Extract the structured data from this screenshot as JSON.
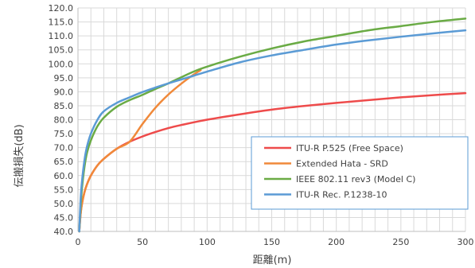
{
  "chart_data": {
    "type": "line",
    "title": "",
    "xlabel": "距離(m)",
    "ylabel": "伝搬損失(dB)",
    "xlim": [
      0,
      300
    ],
    "ylim": [
      40,
      120
    ],
    "x_ticks": [
      "0",
      "50",
      "100",
      "150",
      "200",
      "250",
      "300"
    ],
    "y_ticks": [
      "40.0",
      "45.0",
      "50.0",
      "55.0",
      "60.0",
      "65.0",
      "70.0",
      "75.0",
      "80.0",
      "85.0",
      "90.0",
      "95.0",
      "100.0",
      "105.0",
      "110.0",
      "115.0",
      "120.0"
    ],
    "grid": true,
    "legend_position": "bottom-right",
    "series": [
      {
        "name": "ITU-R P.525 (Free Space)",
        "color": "#ee4b4b",
        "x": [
          1,
          2,
          3,
          5,
          7,
          10,
          15,
          20,
          30,
          40,
          50,
          60,
          70,
          80,
          100,
          125,
          150,
          175,
          200,
          225,
          250,
          275,
          300
        ],
        "y": [
          40.0,
          46.0,
          49.6,
          54.0,
          56.9,
          60.0,
          63.6,
          66.0,
          69.6,
          72.1,
          74.0,
          75.6,
          77.0,
          78.1,
          80.0,
          81.9,
          83.6,
          84.9,
          86.0,
          87.0,
          88.0,
          88.8,
          89.5
        ]
      },
      {
        "name": "Extended Hata - SRD",
        "color": "#f0893a",
        "x": [
          1,
          2,
          3,
          5,
          7,
          10,
          15,
          20,
          30,
          40,
          50,
          60,
          70,
          80,
          90,
          95
        ],
        "y": [
          40.0,
          46.0,
          49.6,
          54.0,
          56.9,
          60.0,
          63.6,
          66.0,
          69.6,
          72.1,
          78.5,
          84.3,
          89.0,
          92.9,
          96.3,
          97.7
        ]
      },
      {
        "name": "IEEE 802.11 rev3 (Model C)",
        "color": "#6aab45",
        "x": [
          1,
          2,
          3,
          5,
          7,
          10,
          15,
          20,
          30,
          40,
          50,
          60,
          70,
          80,
          90,
          100,
          125,
          150,
          175,
          200,
          225,
          250,
          275,
          300
        ],
        "y": [
          40.0,
          48.5,
          55.0,
          63.0,
          68.2,
          72.6,
          77.6,
          80.7,
          84.6,
          87.0,
          88.9,
          91.0,
          93.0,
          95.2,
          97.3,
          99.0,
          102.5,
          105.5,
          108.0,
          110.0,
          112.0,
          113.5,
          115.0,
          116.2
        ]
      },
      {
        "name": "ITU-R Rec. P.1238-10",
        "color": "#5b9bd5",
        "x": [
          1,
          2,
          3,
          5,
          7,
          10,
          15,
          20,
          30,
          40,
          50,
          60,
          70,
          80,
          90,
          100,
          125,
          150,
          175,
          200,
          225,
          250,
          275,
          300
        ],
        "y": [
          40.0,
          51.0,
          57.4,
          65.4,
          70.4,
          75.0,
          79.9,
          83.0,
          86.0,
          88.0,
          89.9,
          91.5,
          93.0,
          94.4,
          95.8,
          97.2,
          100.5,
          103.0,
          105.0,
          106.9,
          108.4,
          109.7,
          110.9,
          112.0
        ]
      }
    ]
  }
}
